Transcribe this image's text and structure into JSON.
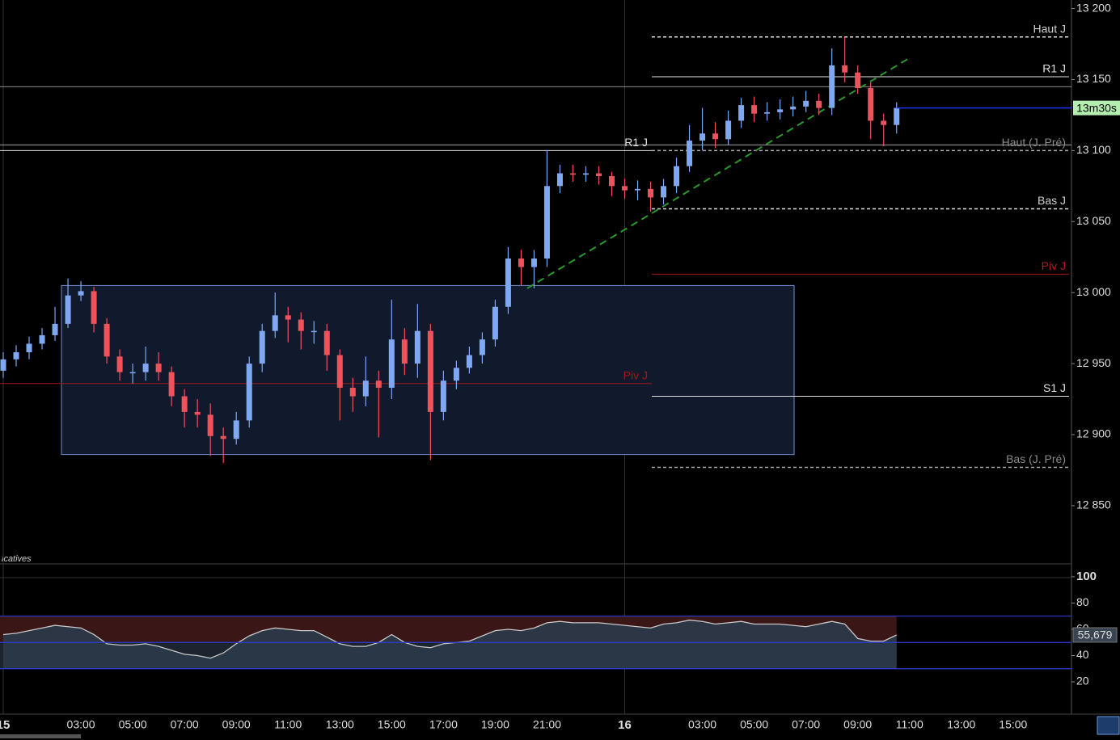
{
  "chart_data": {
    "type": "candlestick",
    "up_color": "#7ea8f2",
    "down_color": "#f0525c",
    "open": [
      12945,
      12953,
      12958,
      12964,
      12970,
      12978,
      12998,
      13001,
      12978,
      12955,
      12944,
      12944,
      12950,
      12944,
      12927,
      12916,
      12914,
      12899,
      12897,
      12910,
      12950,
      12973,
      12984,
      12981,
      12973,
      12973,
      12956,
      12933,
      12927,
      12938,
      12933,
      12967,
      12950,
      12973,
      12916,
      12938,
      12947,
      12956,
      12967,
      12990,
      13024,
      13018,
      13024,
      13075,
      13084,
      13083,
      13084,
      13082,
      13075,
      13072,
      13073,
      13067,
      13075,
      13089,
      13107,
      13112,
      13108,
      13121,
      13132,
      13126,
      13127,
      13129,
      13131,
      13135,
      13130,
      13160,
      13155,
      13144,
      13121,
      13118
    ],
    "high": [
      12958,
      12963,
      12969,
      12975,
      12990,
      13010,
      13008,
      13004,
      12982,
      12960,
      12950,
      12962,
      12958,
      12948,
      12932,
      12925,
      12922,
      12905,
      12916,
      12955,
      12978,
      13000,
      12990,
      12986,
      12980,
      12978,
      12960,
      12940,
      12955,
      12945,
      12995,
      12975,
      12992,
      12978,
      12945,
      12952,
      12962,
      12972,
      12995,
      13032,
      13030,
      13030,
      13100,
      13090,
      13090,
      13089,
      13089,
      13085,
      13080,
      13079,
      13078,
      13080,
      13095,
      13118,
      13130,
      13120,
      13128,
      13137,
      13138,
      13134,
      13136,
      13138,
      13142,
      13140,
      13172,
      13180,
      13160,
      13148,
      13126,
      13134
    ],
    "low": [
      12940,
      12948,
      12953,
      12960,
      12966,
      12975,
      12994,
      12972,
      12950,
      12938,
      12936,
      12938,
      12938,
      12920,
      12905,
      12905,
      12885,
      12880,
      12893,
      12905,
      12944,
      12968,
      12965,
      12960,
      12964,
      12945,
      12910,
      12916,
      12920,
      12898,
      12925,
      12942,
      12940,
      12882,
      12910,
      12932,
      12943,
      12950,
      12962,
      12985,
      13005,
      13003,
      13018,
      13070,
      13078,
      13078,
      13076,
      13068,
      13066,
      13065,
      13057,
      13062,
      13070,
      13085,
      13100,
      13102,
      13104,
      13116,
      13120,
      13121,
      13122,
      13124,
      13127,
      13125,
      13125,
      13148,
      13140,
      13108,
      13103,
      13112
    ],
    "close": [
      12953,
      12958,
      12964,
      12970,
      12978,
      12998,
      13001,
      12978,
      12955,
      12944,
      12944,
      12950,
      12944,
      12927,
      12916,
      12914,
      12899,
      12897,
      12910,
      12950,
      12973,
      12984,
      12981,
      12973,
      12973,
      12956,
      12933,
      12927,
      12938,
      12933,
      12967,
      12950,
      12973,
      12916,
      12938,
      12947,
      12956,
      12967,
      12990,
      13024,
      13018,
      13024,
      13075,
      13084,
      13083,
      13084,
      13082,
      13075,
      13072,
      13073,
      13067,
      13075,
      13089,
      13107,
      13112,
      13108,
      13121,
      13132,
      13126,
      13127,
      13129,
      13131,
      13135,
      13130,
      13160,
      13155,
      13144,
      13121,
      13118,
      13130
    ],
    "ylim": [
      12809,
      13206
    ],
    "yticks": [
      {
        "value": 12850,
        "label": "12 850"
      },
      {
        "value": 12900,
        "label": "12 900"
      },
      {
        "value": 12950,
        "label": "12 950"
      },
      {
        "value": 13000,
        "label": "13 000"
      },
      {
        "value": 13050,
        "label": "13 050"
      },
      {
        "value": 13100,
        "label": "13 100"
      },
      {
        "value": 13150,
        "label": "13 150"
      },
      {
        "value": 13200,
        "label": "13 200"
      }
    ],
    "xlim": [
      -0.125,
      41.16
    ],
    "xticks": [
      {
        "value": 0,
        "label": "15"
      },
      {
        "value": 3,
        "label": "03:00"
      },
      {
        "value": 5,
        "label": "05:00"
      },
      {
        "value": 7,
        "label": "07:00"
      },
      {
        "value": 9,
        "label": "09:00"
      },
      {
        "value": 11,
        "label": "11:00"
      },
      {
        "value": 13,
        "label": "13:00"
      },
      {
        "value": 15,
        "label": "15:00"
      },
      {
        "value": 17,
        "label": "17:00"
      },
      {
        "value": 19,
        "label": "19:00"
      },
      {
        "value": 21,
        "label": "21:00"
      },
      {
        "value": 24,
        "label": "16"
      },
      {
        "value": 27,
        "label": "03:00"
      },
      {
        "value": 29,
        "label": "05:00"
      },
      {
        "value": 31,
        "label": "07:00"
      },
      {
        "value": 33,
        "label": "09:00"
      },
      {
        "value": 35,
        "label": "11:00"
      },
      {
        "value": 37,
        "label": "13:00"
      },
      {
        "value": 39,
        "label": "15:00"
      }
    ],
    "levels": [
      {
        "name": "Haut J",
        "value": 13180,
        "dashed": true,
        "color": "#e0e0e0",
        "label_color": "#d0d0d0"
      },
      {
        "name": "R1 J",
        "value": 13152,
        "dashed": false,
        "color": "#e0e0e0",
        "label_color": "#e0e0e0"
      },
      {
        "name": "Haut (J. Pré)",
        "value": 13100,
        "dashed": true,
        "color": "#aaaaaa",
        "label_color": "#8a8a8a"
      },
      {
        "name": "Bas J",
        "value": 13059,
        "dashed": true,
        "color": "#e0e0e0",
        "label_color": "#d0d0d0"
      },
      {
        "name": "Piv J",
        "value": 13013,
        "dashed": false,
        "color": "#a01818",
        "label_color": "#b01c1c"
      },
      {
        "name": "S1 J",
        "value": 12927,
        "dashed": false,
        "color": "#e0e0e0",
        "label_color": "#e0e0e0"
      },
      {
        "name": "Bas (J. Pré)",
        "value": 12877,
        "dashed": true,
        "color": "#aaaaaa",
        "label_color": "#8a8a8a"
      }
    ],
    "prev_levels": [
      {
        "name": "R1 J",
        "value": 13100,
        "color": "#e0e0e0"
      },
      {
        "name": "Piv J",
        "value": 12936,
        "color": "#a01818"
      }
    ],
    "hlines": [
      13145,
      13104
    ],
    "current_price": 13130,
    "countdown": "13m30s",
    "box_ylim": [
      12886,
      13005
    ],
    "trendline": [
      13003,
      13166
    ],
    "indicator": {
      "label": "icatives",
      "values": [
        56,
        57,
        59,
        61,
        63,
        62,
        61,
        56,
        49,
        48,
        48,
        49,
        47,
        44,
        41,
        40,
        38,
        42,
        49,
        55,
        59,
        61,
        60,
        59,
        59,
        54,
        49,
        47,
        47,
        50,
        56,
        50,
        47,
        46,
        49,
        50,
        51,
        55,
        59,
        60,
        59,
        61,
        65,
        66,
        65,
        65,
        65,
        64,
        63,
        62,
        61,
        64,
        65,
        67,
        66,
        64,
        65,
        66,
        64,
        64,
        64,
        63,
        62,
        64,
        66,
        64,
        53,
        51,
        51,
        55.679
      ],
      "value_label": "55,679",
      "ylim": [
        -4.6,
        109.8
      ],
      "yticks": [
        20,
        40,
        60,
        80,
        100
      ],
      "bands": [
        70,
        50,
        30
      ]
    }
  }
}
